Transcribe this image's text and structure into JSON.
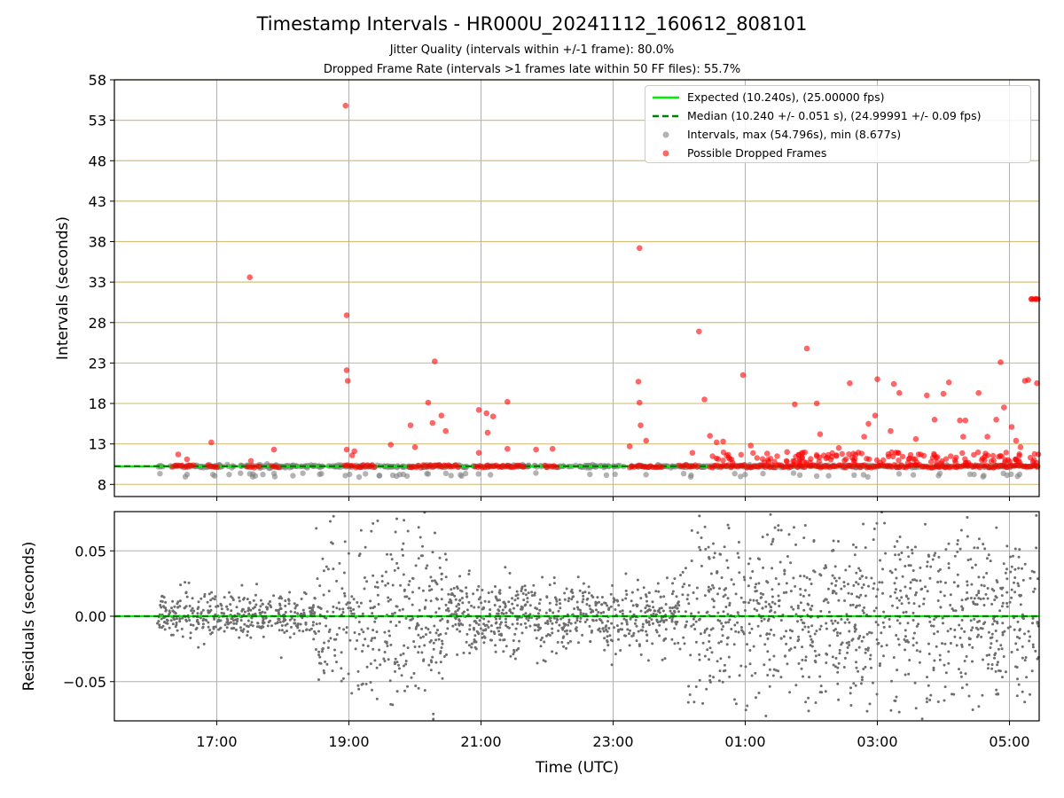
{
  "titles": {
    "main": "Timestamp Intervals - HR000U_20241112_160612_808101",
    "jitter": "Jitter Quality (intervals within +/-1 frame): 80.0%",
    "dropped": "Dropped Frame Rate (intervals >1 frames late within 50 FF files): 55.7%"
  },
  "legend": {
    "expected": "Expected (10.240s), (25.00000 fps)",
    "median": "Median (10.240 +/- 0.051 s), (24.99991 +/- 0.09 fps)",
    "intervals": "Intervals, max (54.796s), min (8.677s)",
    "dropped": "Possible Dropped Frames"
  },
  "colors": {
    "expected": "#00ee00",
    "median": "#008000",
    "intervals": "#808080",
    "dropped": "#ff0000",
    "hgrid_top": "#d4c07a",
    "grid": "#b0b0b0"
  },
  "chart_data": [
    {
      "type": "scatter",
      "panel": "top",
      "ylabel": "Intervals (seconds)",
      "xlabel": "",
      "ylim": [
        6.5,
        58
      ],
      "yticks": [
        8,
        13,
        18,
        23,
        28,
        33,
        38,
        43,
        48,
        53,
        58
      ],
      "grid": true,
      "legend_position": "top-right",
      "expected_interval": 10.24,
      "median_interval": 10.24,
      "series": [
        {
          "name": "Possible Dropped Frames",
          "points": [
            [
              "2024-11-12 16:25",
              11.7
            ],
            [
              "2024-11-12 16:33",
              11.1
            ],
            [
              "2024-11-12 16:55",
              13.2
            ],
            [
              "2024-11-12 17:31",
              10.9
            ],
            [
              "2024-11-12 17:30",
              33.6
            ],
            [
              "2024-11-12 17:52",
              12.3
            ],
            [
              "2024-11-12 18:57",
              54.8
            ],
            [
              "2024-11-12 18:58",
              28.9
            ],
            [
              "2024-11-12 18:58",
              22.1
            ],
            [
              "2024-11-12 18:59",
              20.8
            ],
            [
              "2024-11-12 18:58",
              12.3
            ],
            [
              "2024-11-12 19:05",
              12.1
            ],
            [
              "2024-11-12 19:03",
              11.6
            ],
            [
              "2024-11-12 19:38",
              12.9
            ],
            [
              "2024-11-12 19:56",
              15.3
            ],
            [
              "2024-11-12 20:00",
              12.6
            ],
            [
              "2024-11-12 20:12",
              18.1
            ],
            [
              "2024-11-12 20:16",
              15.6
            ],
            [
              "2024-11-12 20:18",
              23.2
            ],
            [
              "2024-11-12 20:24",
              16.5
            ],
            [
              "2024-11-12 20:28",
              14.6
            ],
            [
              "2024-11-12 20:58",
              17.2
            ],
            [
              "2024-11-12 21:05",
              16.8
            ],
            [
              "2024-11-12 21:11",
              16.4
            ],
            [
              "2024-11-12 21:06",
              14.4
            ],
            [
              "2024-11-12 20:58",
              11.9
            ],
            [
              "2024-11-12 21:24",
              18.2
            ],
            [
              "2024-11-12 21:24",
              12.4
            ],
            [
              "2024-11-12 21:50",
              12.3
            ],
            [
              "2024-11-12 22:05",
              12.4
            ],
            [
              "2024-11-12 23:24",
              37.2
            ],
            [
              "2024-11-12 23:23",
              20.7
            ],
            [
              "2024-11-12 23:24",
              18.1
            ],
            [
              "2024-11-12 23:25",
              15.3
            ],
            [
              "2024-11-12 23:30",
              13.4
            ],
            [
              "2024-11-12 23:15",
              12.7
            ],
            [
              "2024-11-13 00:12",
              11.9
            ],
            [
              "2024-11-13 00:18",
              26.9
            ],
            [
              "2024-11-13 00:23",
              18.5
            ],
            [
              "2024-11-13 00:28",
              14.0
            ],
            [
              "2024-11-13 00:34",
              13.2
            ],
            [
              "2024-11-13 00:40",
              13.3
            ],
            [
              "2024-11-13 00:58",
              21.5
            ],
            [
              "2024-11-13 01:05",
              12.8
            ],
            [
              "2024-11-13 01:20",
              11.8
            ],
            [
              "2024-11-13 01:38",
              12.0
            ],
            [
              "2024-11-13 01:45",
              17.9
            ],
            [
              "2024-11-13 01:56",
              24.8
            ],
            [
              "2024-11-13 02:05",
              18.0
            ],
            [
              "2024-11-13 02:08",
              14.2
            ],
            [
              "2024-11-13 02:25",
              12.5
            ],
            [
              "2024-11-13 02:35",
              20.5
            ],
            [
              "2024-11-13 02:48",
              13.9
            ],
            [
              "2024-11-13 02:52",
              15.5
            ],
            [
              "2024-11-13 02:58",
              16.5
            ],
            [
              "2024-11-13 03:00",
              21.0
            ],
            [
              "2024-11-13 03:12",
              14.6
            ],
            [
              "2024-11-13 03:15",
              20.4
            ],
            [
              "2024-11-13 03:20",
              19.3
            ],
            [
              "2024-11-13 03:35",
              13.6
            ],
            [
              "2024-11-13 03:45",
              19.0
            ],
            [
              "2024-11-13 03:52",
              16.0
            ],
            [
              "2024-11-13 04:00",
              19.2
            ],
            [
              "2024-11-13 04:05",
              20.6
            ],
            [
              "2024-11-13 04:15",
              15.9
            ],
            [
              "2024-11-13 04:20",
              15.9
            ],
            [
              "2024-11-13 04:18",
              13.9
            ],
            [
              "2024-11-13 04:32",
              19.3
            ],
            [
              "2024-11-13 04:40",
              13.9
            ],
            [
              "2024-11-13 04:48",
              16.0
            ],
            [
              "2024-11-13 04:52",
              23.1
            ],
            [
              "2024-11-13 04:55",
              17.5
            ],
            [
              "2024-11-13 05:02",
              15.1
            ],
            [
              "2024-11-13 05:06",
              13.4
            ],
            [
              "2024-11-13 05:10",
              12.6
            ],
            [
              "2024-11-13 05:14",
              20.8
            ],
            [
              "2024-11-13 05:17",
              20.9
            ],
            [
              "2024-11-13 05:25",
              20.5
            ],
            [
              "2024-11-13 05:20",
              30.9
            ],
            [
              "2024-11-13 05:24",
              30.9
            ]
          ]
        },
        {
          "name": "Intervals, max (54.796s), min (8.677s)",
          "band": "most intervals near 10.24 s; scattered low values down to 8.677 s",
          "min": 8.677,
          "max": 54.796
        }
      ],
      "hlines": [
        {
          "label": "Expected (10.240s), (25.00000 fps)",
          "value": 10.24
        },
        {
          "label": "Median (10.240 +/- 0.051 s), (24.99991 +/- 0.09 fps)",
          "value": 10.24
        }
      ]
    },
    {
      "type": "scatter",
      "panel": "bottom",
      "xlabel": "Time (UTC)",
      "ylabel": "Residuals (seconds)",
      "ylim": [
        -0.08,
        0.08
      ],
      "yticks": [
        -0.05,
        0.0,
        0.05
      ],
      "ytick_labels": [
        "−0.05",
        "0.00",
        "0.05"
      ],
      "xlim": [
        "2024-11-12 15:27",
        "2024-11-13 05:27"
      ],
      "xticks": [
        "17:00",
        "19:00",
        "21:00",
        "23:00",
        "01:00",
        "03:00",
        "05:00"
      ],
      "grid": true,
      "data_start": "2024-11-12 16:06",
      "data_end": "2024-11-13 05:27",
      "residual_spread": [
        {
          "from": "2024-11-12 16:06",
          "to": "2024-11-12 18:30",
          "sd": 0.009
        },
        {
          "from": "2024-11-12 18:30",
          "to": "2024-11-12 20:30",
          "sd": 0.035
        },
        {
          "from": "2024-11-12 20:30",
          "to": "2024-11-13 00:00",
          "sd": 0.013
        },
        {
          "from": "2024-11-13 00:00",
          "to": "2024-11-13 05:27",
          "sd": 0.035
        }
      ]
    }
  ]
}
